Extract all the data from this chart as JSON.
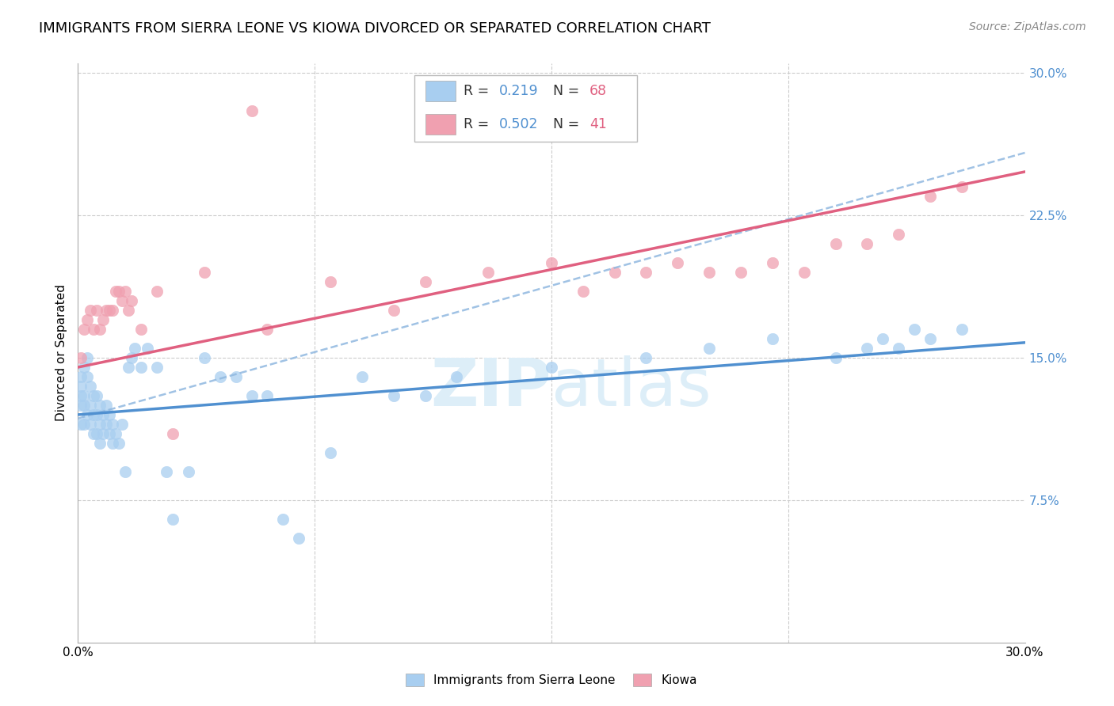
{
  "title": "IMMIGRANTS FROM SIERRA LEONE VS KIOWA DIVORCED OR SEPARATED CORRELATION CHART",
  "source_text": "Source: ZipAtlas.com",
  "ylabel": "Divorced or Separated",
  "xmin": 0.0,
  "xmax": 0.3,
  "ymin": 0.0,
  "ymax": 0.3,
  "ytick_values": [
    0.075,
    0.15,
    0.225,
    0.3
  ],
  "xtick_values": [
    0.0,
    0.3
  ],
  "blue_color": "#a8cef0",
  "pink_color": "#f0a0b0",
  "blue_line_color": "#5090d0",
  "pink_line_color": "#e06080",
  "blue_dash_color": "#90b8e0",
  "watermark_color": "#ddeef8",
  "background_color": "#ffffff",
  "grid_color": "#cccccc",
  "right_tick_color": "#5090d0",
  "title_fontsize": 13,
  "axis_label_fontsize": 11,
  "tick_fontsize": 11,
  "source_fontsize": 10,
  "legend_r1_val": "0.219",
  "legend_n1_val": "68",
  "legend_r2_val": "0.502",
  "legend_n2_val": "41",
  "r_color": "#5090d0",
  "n_color": "#e06080",
  "sierra_leone_x": [
    0.001,
    0.001,
    0.001,
    0.001,
    0.001,
    0.002,
    0.002,
    0.002,
    0.002,
    0.003,
    0.003,
    0.003,
    0.004,
    0.004,
    0.004,
    0.005,
    0.005,
    0.005,
    0.006,
    0.006,
    0.006,
    0.007,
    0.007,
    0.007,
    0.008,
    0.008,
    0.009,
    0.009,
    0.01,
    0.01,
    0.011,
    0.011,
    0.012,
    0.013,
    0.014,
    0.015,
    0.016,
    0.017,
    0.018,
    0.02,
    0.022,
    0.025,
    0.028,
    0.03,
    0.035,
    0.04,
    0.045,
    0.05,
    0.055,
    0.06,
    0.065,
    0.07,
    0.08,
    0.09,
    0.1,
    0.11,
    0.12,
    0.15,
    0.18,
    0.2,
    0.22,
    0.24,
    0.25,
    0.255,
    0.26,
    0.265,
    0.27,
    0.28
  ],
  "sierra_leone_y": [
    0.13,
    0.135,
    0.14,
    0.125,
    0.115,
    0.145,
    0.13,
    0.125,
    0.115,
    0.15,
    0.14,
    0.12,
    0.135,
    0.125,
    0.115,
    0.13,
    0.12,
    0.11,
    0.13,
    0.12,
    0.11,
    0.125,
    0.115,
    0.105,
    0.12,
    0.11,
    0.125,
    0.115,
    0.12,
    0.11,
    0.115,
    0.105,
    0.11,
    0.105,
    0.115,
    0.09,
    0.145,
    0.15,
    0.155,
    0.145,
    0.155,
    0.145,
    0.09,
    0.065,
    0.09,
    0.15,
    0.14,
    0.14,
    0.13,
    0.13,
    0.065,
    0.055,
    0.1,
    0.14,
    0.13,
    0.13,
    0.14,
    0.145,
    0.15,
    0.155,
    0.16,
    0.15,
    0.155,
    0.16,
    0.155,
    0.165,
    0.16,
    0.165
  ],
  "kiowa_x": [
    0.001,
    0.002,
    0.003,
    0.004,
    0.005,
    0.006,
    0.007,
    0.008,
    0.009,
    0.01,
    0.011,
    0.012,
    0.013,
    0.014,
    0.015,
    0.016,
    0.017,
    0.02,
    0.025,
    0.03,
    0.04,
    0.055,
    0.06,
    0.08,
    0.1,
    0.11,
    0.13,
    0.15,
    0.16,
    0.17,
    0.18,
    0.19,
    0.2,
    0.21,
    0.22,
    0.23,
    0.24,
    0.25,
    0.26,
    0.27,
    0.28
  ],
  "kiowa_y": [
    0.15,
    0.165,
    0.17,
    0.175,
    0.165,
    0.175,
    0.165,
    0.17,
    0.175,
    0.175,
    0.175,
    0.185,
    0.185,
    0.18,
    0.185,
    0.175,
    0.18,
    0.165,
    0.185,
    0.11,
    0.195,
    0.28,
    0.165,
    0.19,
    0.175,
    0.19,
    0.195,
    0.2,
    0.185,
    0.195,
    0.195,
    0.2,
    0.195,
    0.195,
    0.2,
    0.195,
    0.21,
    0.21,
    0.215,
    0.235,
    0.24
  ],
  "blue_line_x0": 0.0,
  "blue_line_y0": 0.12,
  "blue_line_x1": 0.3,
  "blue_line_y1": 0.158,
  "pink_line_x0": 0.0,
  "pink_line_y0": 0.145,
  "pink_line_x1": 0.3,
  "pink_line_y1": 0.248,
  "dash_line_x0": 0.0,
  "dash_line_y0": 0.118,
  "dash_line_x1": 0.3,
  "dash_line_y1": 0.258
}
